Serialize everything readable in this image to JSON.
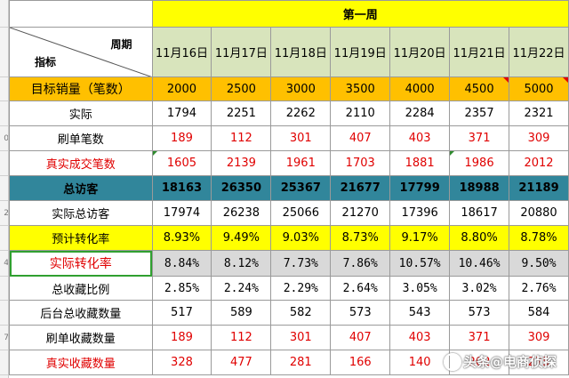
{
  "header": {
    "week_label": "第一周",
    "corner_week": "周期",
    "corner_indicator": "指标",
    "dates": [
      "11月16日",
      "11月17日",
      "11月18日",
      "11月19日",
      "11月20日",
      "11月21日",
      "11月22日"
    ]
  },
  "row_numbers": [
    "",
    "",
    "",
    "",
    "",
    "",
    "",
    "",
    "0",
    "",
    "",
    "2",
    "",
    "4",
    "",
    "",
    "7",
    ""
  ],
  "rows": {
    "target": {
      "label": "目标销量（笔数）",
      "values": [
        "2000",
        "2500",
        "3000",
        "3500",
        "4000",
        "4500",
        "5000"
      ]
    },
    "actual": {
      "label": "实际",
      "values": [
        "1794",
        "2251",
        "2262",
        "2110",
        "2284",
        "2357",
        "2321"
      ]
    },
    "brush": {
      "label": "刷单笔数",
      "values": [
        "189",
        "112",
        "301",
        "407",
        "403",
        "371",
        "309"
      ]
    },
    "real": {
      "label": "真实成交笔数",
      "values": [
        "1605",
        "2139",
        "1961",
        "1703",
        "1881",
        "1986",
        "2012"
      ]
    },
    "visitors": {
      "label": "总访客",
      "values": [
        "18163",
        "26350",
        "25367",
        "21677",
        "17799",
        "18988",
        "21189"
      ]
    },
    "real_visitors": {
      "label": "实际总访客",
      "values": [
        "17974",
        "26238",
        "25066",
        "21270",
        "17396",
        "18617",
        "20880"
      ]
    },
    "pred_rate": {
      "label": "预计转化率",
      "values": [
        "8.93%",
        "9.49%",
        "9.03%",
        "8.73%",
        "9.17%",
        "8.80%",
        "8.78%"
      ]
    },
    "act_rate": {
      "label": "实际转化率",
      "values": [
        "8.84%",
        "8.12%",
        "7.73%",
        "7.86%",
        "10.57%",
        "10.46%",
        "9.50%"
      ]
    },
    "fav_ratio": {
      "label": "总收藏比例",
      "values": [
        "2.85%",
        "2.24%",
        "2.29%",
        "2.64%",
        "3.05%",
        "3.02%",
        "2.76%"
      ]
    },
    "fav_backend": {
      "label": "后台总收藏数量",
      "values": [
        "517",
        "589",
        "582",
        "573",
        "543",
        "573",
        "584"
      ]
    },
    "fav_brush": {
      "label": "刷单收藏数量",
      "values": [
        "189",
        "112",
        "301",
        "407",
        "403",
        "371",
        "309"
      ]
    },
    "fav_real": {
      "label": "真实收藏数量",
      "values": [
        "328",
        "477",
        "281",
        "166",
        "140",
        "202",
        "275"
      ]
    }
  },
  "watermark": {
    "text": "头条@电商侦探"
  },
  "colors": {
    "week": "#ffff00",
    "date_header": "#d8e4bc",
    "target": "#ffc000",
    "total": "#31869b",
    "predicted": "#ffff00",
    "actual_rate": "#d9d9d9",
    "red_text": "#e00000"
  }
}
